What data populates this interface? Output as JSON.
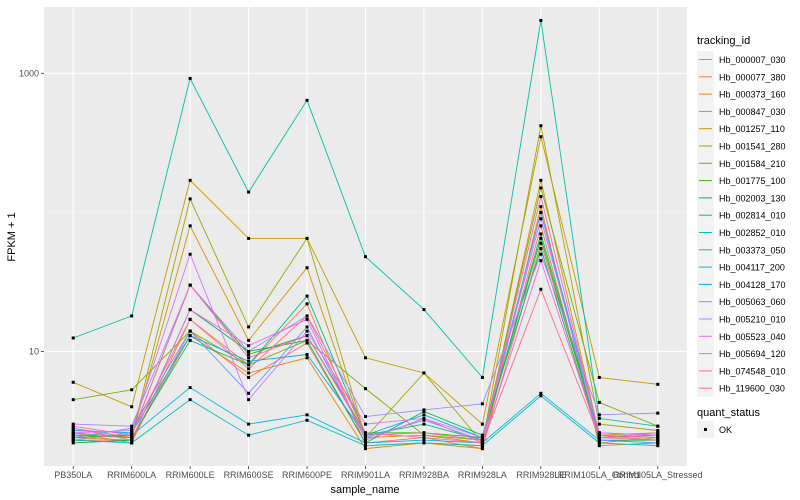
{
  "chart_data": {
    "type": "line",
    "xlabel": "sample_name",
    "ylabel": "FPKM + 1",
    "y_scale": "log10",
    "ylim": [
      1.5,
      3000
    ],
    "y_ticks": [
      10,
      1000
    ],
    "y_tick_labels": [
      "10",
      "1000"
    ],
    "categories": [
      "PB350LA",
      "RRIM600LA",
      "RRIM600LE",
      "RRIM600SE",
      "RRIM600PE",
      "RRIM901LA",
      "RRIM928BA",
      "RRIM928LA",
      "RRIM928LE",
      "RRIM105LA_Control",
      "RRIM105LA_Stressed"
    ],
    "grid": true,
    "legend_position": "right",
    "legend_title": "tracking_id",
    "legend2_title": "quant_status",
    "legend2_items": [
      "OK"
    ],
    "series": [
      {
        "name": "Hb_000007_030",
        "color": "#F8766D",
        "values": [
          2.3,
          2.3,
          14.0,
          6.5,
          11.5,
          2.2,
          2.4,
          2.0,
          60.0,
          2.5,
          2.3
        ]
      },
      {
        "name": "Hb_000077_380",
        "color": "#F07F4B",
        "values": [
          2.6,
          2.2,
          17.0,
          8.0,
          22.0,
          2.1,
          2.2,
          2.1,
          80.0,
          2.2,
          2.4
        ]
      },
      {
        "name": "Hb_000373_160",
        "color": "#E58700",
        "values": [
          2.4,
          2.3,
          13.0,
          7.0,
          9.0,
          2.0,
          2.2,
          2.0,
          110.0,
          2.1,
          2.2
        ]
      },
      {
        "name": "Hb_000847_030",
        "color": "#D69100",
        "values": [
          2.8,
          2.4,
          80.0,
          12.0,
          40.0,
          2.4,
          2.5,
          2.2,
          170.0,
          2.5,
          2.6
        ]
      },
      {
        "name": "Hb_001257_110",
        "color": "#C49A00",
        "values": [
          6.0,
          4.0,
          170.0,
          65.0,
          65.0,
          9.0,
          7.0,
          3.0,
          350.0,
          6.5,
          5.8
        ]
      },
      {
        "name": "Hb_001541_280",
        "color": "#A3A500",
        "values": [
          2.6,
          2.4,
          125.0,
          15.0,
          65.0,
          2.4,
          7.0,
          2.2,
          420.0,
          3.0,
          2.7
        ]
      },
      {
        "name": "Hb_001584_210",
        "color": "#7CAE00",
        "values": [
          4.5,
          5.3,
          14.0,
          8.0,
          12.0,
          5.4,
          2.5,
          2.3,
          150.0,
          4.3,
          2.9
        ]
      },
      {
        "name": "Hb_001775_100",
        "color": "#39B600",
        "values": [
          2.4,
          2.5,
          30.0,
          9.5,
          13.0,
          2.6,
          2.6,
          2.4,
          65.0,
          2.4,
          2.5
        ]
      },
      {
        "name": "Hb_002003_130",
        "color": "#00BB4E",
        "values": [
          2.2,
          2.3,
          20.0,
          10.0,
          12.0,
          2.2,
          3.7,
          2.5,
          55.0,
          2.3,
          2.3
        ]
      },
      {
        "name": "Hb_002814_010",
        "color": "#00BF7D",
        "values": [
          2.5,
          2.4,
          12.0,
          8.0,
          25.0,
          2.5,
          3.0,
          2.3,
          70.0,
          2.5,
          2.4
        ]
      },
      {
        "name": "Hb_002852_010",
        "color": "#00C1A3",
        "values": [
          12.5,
          18.0,
          920.0,
          140.0,
          640.0,
          48.0,
          20.0,
          6.5,
          2400.0,
          3.3,
          2.9
        ]
      },
      {
        "name": "Hb_003373_050",
        "color": "#00BFC4",
        "values": [
          2.3,
          2.2,
          4.5,
          2.5,
          3.2,
          2.1,
          2.2,
          2.1,
          4.8,
          2.2,
          2.1
        ]
      },
      {
        "name": "Hb_004117_200",
        "color": "#00B8E5",
        "values": [
          2.5,
          2.5,
          5.5,
          3.0,
          3.5,
          2.2,
          2.3,
          2.2,
          5.0,
          2.3,
          2.2
        ]
      },
      {
        "name": "Hb_004128_170",
        "color": "#00ABFD",
        "values": [
          2.7,
          2.6,
          13.0,
          8.5,
          9.5,
          2.5,
          3.5,
          2.4,
          100.0,
          2.6,
          2.5
        ]
      },
      {
        "name": "Hb_005063_060",
        "color": "#619CFF",
        "values": [
          2.4,
          2.8,
          14.0,
          5.0,
          15.0,
          2.4,
          3.2,
          2.3,
          100.0,
          2.3,
          2.2
        ]
      },
      {
        "name": "Hb_005210_010",
        "color": "#A58AFF",
        "values": [
          3.0,
          2.9,
          30.0,
          10.0,
          18.0,
          3.4,
          3.8,
          4.2,
          50.0,
          3.5,
          3.6
        ]
      },
      {
        "name": "Hb_005523_040",
        "color": "#DB72FB",
        "values": [
          2.6,
          2.7,
          50.0,
          4.5,
          14.0,
          3.0,
          3.3,
          2.4,
          90.0,
          2.6,
          2.5
        ]
      },
      {
        "name": "Hb_005694_120",
        "color": "#F564E3",
        "values": [
          2.8,
          2.3,
          20.0,
          11.0,
          17.0,
          2.3,
          3.3,
          2.2,
          45.0,
          2.4,
          2.6
        ]
      },
      {
        "name": "Hb_074548_010",
        "color": "#FF62BC",
        "values": [
          2.9,
          2.5,
          30.0,
          9.0,
          13.0,
          2.5,
          2.6,
          2.3,
          130.0,
          2.5,
          2.4
        ]
      },
      {
        "name": "Hb_119600_030",
        "color": "#FF6C91",
        "values": [
          2.3,
          2.6,
          17.0,
          7.5,
          18.0,
          2.6,
          2.4,
          2.2,
          28.0,
          2.4,
          2.3
        ]
      }
    ]
  }
}
